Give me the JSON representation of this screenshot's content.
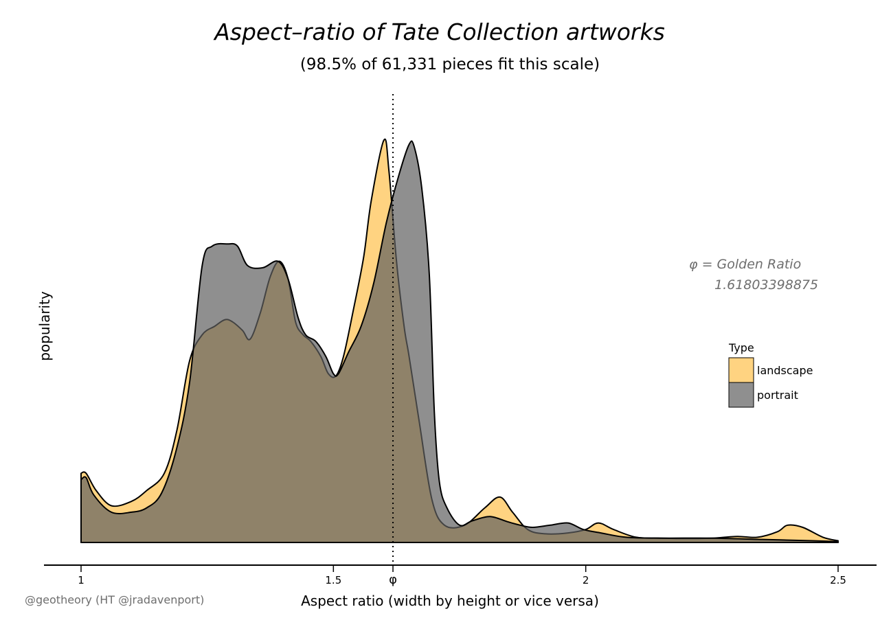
{
  "chart_data": {
    "type": "area",
    "title": "Aspect–ratio of Tate Collection artworks",
    "subtitle": "(98.5% of 61,331 pieces fit this scale)",
    "xlabel": "Aspect ratio (width by height or vice versa)",
    "ylabel": "popularity",
    "xlim": [
      1,
      2.5
    ],
    "ylim": [
      0,
      1
    ],
    "x_ticks": [
      {
        "value": 1,
        "label": "1"
      },
      {
        "value": 1.5,
        "label": "1.5"
      },
      {
        "value": 1.618,
        "label": "φ"
      },
      {
        "value": 2,
        "label": "2"
      },
      {
        "value": 2.5,
        "label": "2.5"
      }
    ],
    "reference_line": {
      "x": 1.61803398875,
      "style": "dotted"
    },
    "annotation": {
      "line1": "φ = Golden Ratio",
      "line2": "1.61803398875"
    },
    "credit": "@geotheory (HT @jradavenport)",
    "legend": {
      "title": "Type",
      "placement": "right",
      "entries": [
        {
          "name": "landscape",
          "color": "#FFC04C"
        },
        {
          "name": "portrait",
          "color": "#606060"
        }
      ]
    },
    "fill_opacity": 0.7,
    "grid": false,
    "series": [
      {
        "name": "landscape",
        "color": "#FFC04C",
        "points": [
          [
            1.0,
            0.16
          ],
          [
            1.01,
            0.16
          ],
          [
            1.03,
            0.12
          ],
          [
            1.06,
            0.085
          ],
          [
            1.1,
            0.095
          ],
          [
            1.13,
            0.12
          ],
          [
            1.165,
            0.16
          ],
          [
            1.19,
            0.26
          ],
          [
            1.215,
            0.42
          ],
          [
            1.24,
            0.48
          ],
          [
            1.265,
            0.5
          ],
          [
            1.285,
            0.515
          ],
          [
            1.3,
            0.51
          ],
          [
            1.32,
            0.49
          ],
          [
            1.335,
            0.47
          ],
          [
            1.355,
            0.53
          ],
          [
            1.375,
            0.615
          ],
          [
            1.393,
            0.65
          ],
          [
            1.41,
            0.61
          ],
          [
            1.425,
            0.51
          ],
          [
            1.44,
            0.48
          ],
          [
            1.455,
            0.465
          ],
          [
            1.475,
            0.43
          ],
          [
            1.49,
            0.39
          ],
          [
            1.505,
            0.385
          ],
          [
            1.52,
            0.43
          ],
          [
            1.54,
            0.54
          ],
          [
            1.56,
            0.66
          ],
          [
            1.575,
            0.79
          ],
          [
            1.6,
            0.93
          ],
          [
            1.61,
            0.86
          ],
          [
            1.625,
            0.65
          ],
          [
            1.64,
            0.5
          ],
          [
            1.65,
            0.43
          ],
          [
            1.67,
            0.28
          ],
          [
            1.695,
            0.1
          ],
          [
            1.72,
            0.04
          ],
          [
            1.76,
            0.04
          ],
          [
            1.8,
            0.08
          ],
          [
            1.83,
            0.105
          ],
          [
            1.855,
            0.07
          ],
          [
            1.885,
            0.03
          ],
          [
            1.92,
            0.02
          ],
          [
            1.965,
            0.022
          ],
          [
            2.0,
            0.03
          ],
          [
            2.025,
            0.045
          ],
          [
            2.055,
            0.03
          ],
          [
            2.1,
            0.012
          ],
          [
            2.15,
            0.01
          ],
          [
            2.2,
            0.009
          ],
          [
            2.25,
            0.01
          ],
          [
            2.3,
            0.014
          ],
          [
            2.34,
            0.012
          ],
          [
            2.38,
            0.025
          ],
          [
            2.4,
            0.04
          ],
          [
            2.43,
            0.035
          ],
          [
            2.47,
            0.012
          ],
          [
            2.5,
            0.004
          ]
        ]
      },
      {
        "name": "portrait",
        "color": "#606060",
        "points": [
          [
            1.0,
            0.145
          ],
          [
            1.01,
            0.15
          ],
          [
            1.025,
            0.11
          ],
          [
            1.06,
            0.07
          ],
          [
            1.1,
            0.07
          ],
          [
            1.13,
            0.08
          ],
          [
            1.16,
            0.115
          ],
          [
            1.19,
            0.22
          ],
          [
            1.215,
            0.37
          ],
          [
            1.24,
            0.64
          ],
          [
            1.26,
            0.685
          ],
          [
            1.29,
            0.69
          ],
          [
            1.31,
            0.685
          ],
          [
            1.33,
            0.64
          ],
          [
            1.36,
            0.635
          ],
          [
            1.39,
            0.65
          ],
          [
            1.41,
            0.61
          ],
          [
            1.43,
            0.52
          ],
          [
            1.445,
            0.48
          ],
          [
            1.465,
            0.465
          ],
          [
            1.485,
            0.43
          ],
          [
            1.5,
            0.39
          ],
          [
            1.51,
            0.39
          ],
          [
            1.53,
            0.44
          ],
          [
            1.555,
            0.5
          ],
          [
            1.58,
            0.6
          ],
          [
            1.605,
            0.74
          ],
          [
            1.63,
            0.85
          ],
          [
            1.65,
            0.92
          ],
          [
            1.66,
            0.915
          ],
          [
            1.675,
            0.82
          ],
          [
            1.69,
            0.62
          ],
          [
            1.7,
            0.3
          ],
          [
            1.71,
            0.14
          ],
          [
            1.725,
            0.08
          ],
          [
            1.75,
            0.04
          ],
          [
            1.775,
            0.05
          ],
          [
            1.81,
            0.06
          ],
          [
            1.845,
            0.048
          ],
          [
            1.87,
            0.04
          ],
          [
            1.895,
            0.035
          ],
          [
            1.93,
            0.04
          ],
          [
            1.965,
            0.045
          ],
          [
            1.995,
            0.03
          ],
          [
            2.03,
            0.022
          ],
          [
            2.08,
            0.012
          ],
          [
            2.15,
            0.01
          ],
          [
            2.25,
            0.01
          ],
          [
            2.35,
            0.007
          ],
          [
            2.45,
            0.004
          ],
          [
            2.5,
            0.002
          ]
        ]
      }
    ]
  }
}
